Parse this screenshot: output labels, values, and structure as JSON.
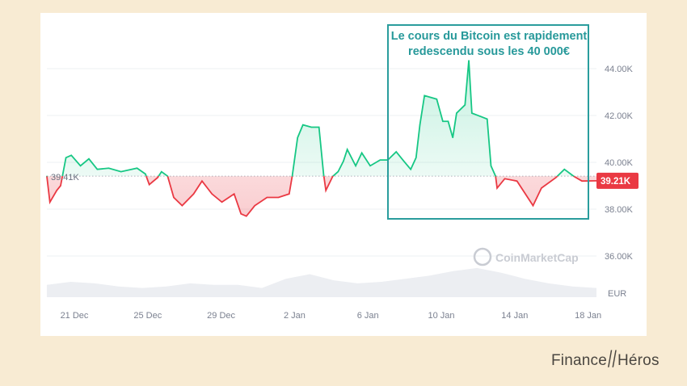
{
  "annotation": {
    "text": "Le cours du Bitcoin est rapidement redescendu sous les 40 000€"
  },
  "watermark": "CoinMarketCap",
  "logo": {
    "left": "Finance",
    "right": "Héros"
  },
  "colors": {
    "up": "#16c784",
    "down": "#ea3943",
    "annotation": "#2a9d9d",
    "background": "#f8ebd3"
  },
  "chart_data": {
    "type": "line",
    "title": "",
    "currency_label": "EUR",
    "reference_value": 39.41,
    "reference_label": "39.41K",
    "current_value": 39.21,
    "current_label": "39.21K",
    "ylim": [
      35.5,
      45
    ],
    "y_ticks": [
      {
        "v": 44,
        "label": "44.00K"
      },
      {
        "v": 42,
        "label": "42.00K"
      },
      {
        "v": 40,
        "label": "40.00K"
      },
      {
        "v": 38,
        "label": "38.00K"
      },
      {
        "v": 36,
        "label": "36.00K"
      }
    ],
    "x_ticks": [
      {
        "t": "12-21T00:00",
        "label": "21 Dec"
      },
      {
        "t": "12-25T00:00",
        "label": "25 Dec"
      },
      {
        "t": "12-29T00:00",
        "label": "29 Dec"
      },
      {
        "t": "01-02T00:00",
        "label": "2 Jan"
      },
      {
        "t": "01-06T00:00",
        "label": "6 Jan"
      },
      {
        "t": "01-10T00:00",
        "label": "10 Jan"
      },
      {
        "t": "01-14T00:00",
        "label": "14 Jan"
      },
      {
        "t": "01-18T00:00",
        "label": "18 Jan"
      }
    ],
    "series": [
      {
        "unit": "K EUR",
        "points": [
          [
            "12-19T12:00",
            39.41
          ],
          [
            "12-19T16:00",
            38.3
          ],
          [
            "12-20T01:00",
            38.8
          ],
          [
            "12-20T06:00",
            39.0
          ],
          [
            "12-20T13:00",
            40.2
          ],
          [
            "12-20T20:00",
            40.3
          ],
          [
            "12-21T08:00",
            39.85
          ],
          [
            "12-21T19:00",
            40.15
          ],
          [
            "12-22T06:00",
            39.7
          ],
          [
            "12-22T21:00",
            39.75
          ],
          [
            "12-23T13:00",
            39.6
          ],
          [
            "12-24T10:00",
            39.75
          ],
          [
            "12-24T21:00",
            39.5
          ],
          [
            "12-25T02:00",
            39.05
          ],
          [
            "12-25T13:00",
            39.35
          ],
          [
            "12-25T18:00",
            39.6
          ],
          [
            "12-26T02:00",
            39.41
          ],
          [
            "12-26T10:00",
            38.5
          ],
          [
            "12-26T21:00",
            38.15
          ],
          [
            "12-27T12:00",
            38.65
          ],
          [
            "12-27T23:00",
            39.2
          ],
          [
            "12-28T12:00",
            38.65
          ],
          [
            "12-29T01:00",
            38.3
          ],
          [
            "12-29T17:00",
            38.65
          ],
          [
            "12-30T02:00",
            37.8
          ],
          [
            "12-30T09:00",
            37.7
          ],
          [
            "12-30T20:00",
            38.15
          ],
          [
            "12-31T12:00",
            38.5
          ],
          [
            "01-01T03:00",
            38.5
          ],
          [
            "01-01T17:00",
            38.65
          ],
          [
            "01-01T21:00",
            39.41
          ],
          [
            "01-02T04:00",
            41.05
          ],
          [
            "01-02T11:00",
            41.6
          ],
          [
            "01-02T22:00",
            41.5
          ],
          [
            "01-03T08:00",
            41.5
          ],
          [
            "01-03T14:00",
            39.5
          ],
          [
            "01-03T17:00",
            38.8
          ],
          [
            "01-04T02:00",
            39.4
          ],
          [
            "01-04T09:00",
            39.6
          ],
          [
            "01-04T16:00",
            40.05
          ],
          [
            "01-04T21:00",
            40.55
          ],
          [
            "01-05T08:00",
            39.85
          ],
          [
            "01-05T16:00",
            40.4
          ],
          [
            "01-06T03:00",
            39.85
          ],
          [
            "01-06T16:00",
            40.1
          ],
          [
            "01-07T02:00",
            40.1
          ],
          [
            "01-07T13:00",
            40.45
          ],
          [
            "01-07T23:00",
            40.05
          ],
          [
            "01-08T08:00",
            39.7
          ],
          [
            "01-08T15:00",
            40.2
          ],
          [
            "01-08T20:00",
            41.6
          ],
          [
            "01-09T02:00",
            42.85
          ],
          [
            "01-09T18:00",
            42.7
          ],
          [
            "01-10T02:00",
            41.75
          ],
          [
            "01-10T09:00",
            41.75
          ],
          [
            "01-10T15:00",
            41.05
          ],
          [
            "01-10T20:00",
            42.1
          ],
          [
            "01-11T07:00",
            42.45
          ],
          [
            "01-11T12:00",
            44.35
          ],
          [
            "01-11T16:00",
            42.1
          ],
          [
            "01-12T04:00",
            41.95
          ],
          [
            "01-12T12:00",
            41.85
          ],
          [
            "01-12T17:00",
            39.85
          ],
          [
            "01-12T23:00",
            39.41
          ],
          [
            "01-13T01:00",
            38.9
          ],
          [
            "01-13T11:00",
            39.3
          ],
          [
            "01-14T03:00",
            39.2
          ],
          [
            "01-15T00:00",
            38.15
          ],
          [
            "01-15T11:00",
            38.9
          ],
          [
            "01-16T06:00",
            39.35
          ],
          [
            "01-16T17:00",
            39.7
          ],
          [
            "01-17T05:00",
            39.41
          ],
          [
            "01-17T16:00",
            39.2
          ],
          [
            "01-18T11:00",
            39.21
          ]
        ]
      }
    ],
    "volume_relative": [
      0.4,
      0.5,
      0.45,
      0.35,
      0.3,
      0.35,
      0.45,
      0.4,
      0.4,
      0.3,
      0.6,
      0.75,
      0.55,
      0.45,
      0.5,
      0.6,
      0.7,
      0.85,
      0.95,
      0.8,
      0.6,
      0.45,
      0.35,
      0.3
    ]
  }
}
